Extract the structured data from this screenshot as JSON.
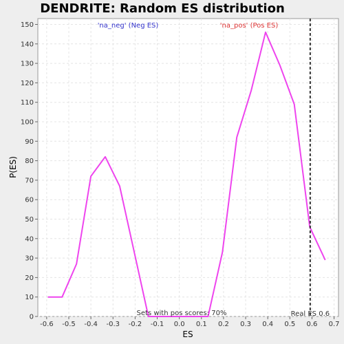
{
  "chart_data": {
    "type": "line",
    "title": "DENDRITE: Random ES distribution",
    "xlabel": "ES",
    "ylabel": "P(ES)",
    "xlim": [
      -0.64,
      0.72
    ],
    "ylim": [
      0,
      153
    ],
    "xticks": [
      -0.6,
      -0.5,
      -0.4,
      -0.3,
      -0.2,
      -0.1,
      0.0,
      0.1,
      0.2,
      0.3,
      0.4,
      0.5,
      0.6,
      0.7
    ],
    "xtick_labels": [
      "-0.6",
      "-0.5",
      "-0.4",
      "-0.3",
      "-0.2",
      "-0.1",
      "0.0",
      "0.1",
      "0.2",
      "0.3",
      "0.4",
      "0.5",
      "0.6",
      "0.7"
    ],
    "yticks": [
      0,
      10,
      20,
      30,
      40,
      50,
      60,
      70,
      80,
      90,
      100,
      110,
      120,
      130,
      140,
      150
    ],
    "ytick_labels": [
      "0",
      "10",
      "20",
      "30",
      "40",
      "50",
      "60",
      "70",
      "80",
      "90",
      "100",
      "110",
      "120",
      "130",
      "140",
      "150"
    ],
    "grid": true,
    "series": [
      {
        "color": "#ee44ee",
        "x": [
          -0.595,
          -0.53,
          -0.465,
          -0.4,
          -0.335,
          -0.27,
          -0.2,
          -0.14,
          0.0,
          0.13,
          0.195,
          0.26,
          0.325,
          0.39,
          0.455,
          0.52,
          0.59,
          0.66
        ],
        "y": [
          10,
          10,
          27,
          72,
          82,
          67,
          31,
          0,
          0,
          0,
          33,
          92,
          116,
          146,
          129,
          109,
          46,
          29
        ]
      }
    ],
    "vline": {
      "x": 0.592,
      "label": "Real ES 0.6",
      "color": "#333333"
    },
    "annotations": {
      "neg_label": "'na_neg' (Neg ES)",
      "neg_color": "#3333cc",
      "pos_label": "'na_pos' (Pos ES)",
      "pos_color": "#dd3333",
      "pos_fraction": "Sets with pos scores: 70%"
    }
  }
}
